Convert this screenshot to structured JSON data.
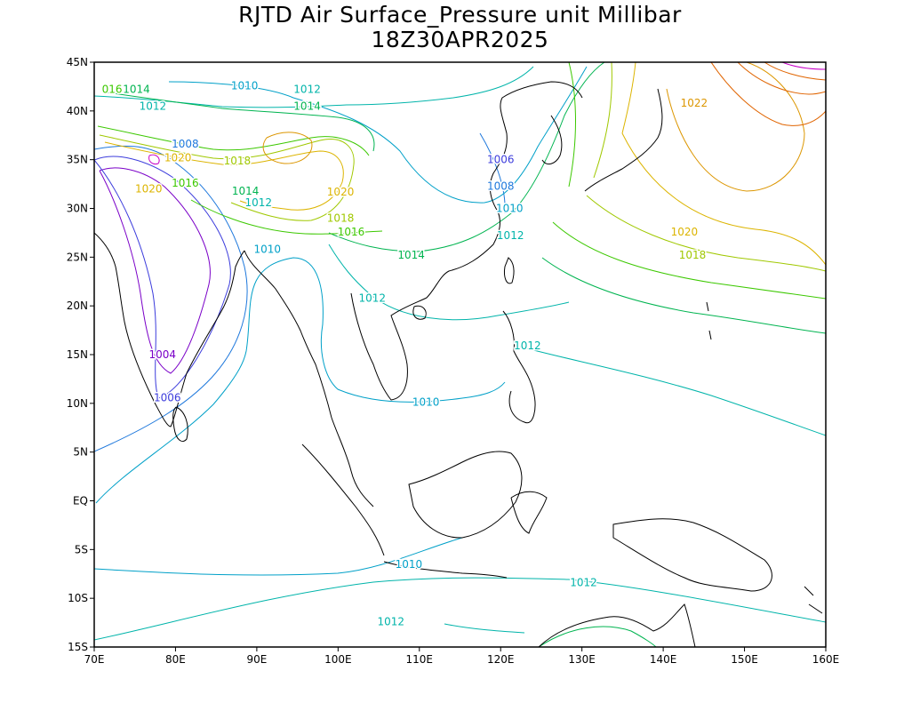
{
  "title": {
    "line1": "RJTD Air Surface_Pressure unit Millibar",
    "line2": "18Z30APR2025"
  },
  "map": {
    "projection": "lat-lon",
    "lon_range": [
      70,
      160
    ],
    "lat_range": [
      -15,
      45
    ],
    "x_ticks": [
      "70E",
      "80E",
      "90E",
      "100E",
      "110E",
      "120E",
      "130E",
      "140E",
      "150E",
      "160E"
    ],
    "y_ticks": [
      "45N",
      "40N",
      "35N",
      "30N",
      "25N",
      "20N",
      "15N",
      "10N",
      "5N",
      "EQ",
      "5S",
      "10S",
      "15S"
    ],
    "field": "surface pressure (mb)",
    "contour_levels": [
      1004,
      1006,
      1008,
      1010,
      1012,
      1014,
      1016,
      1018,
      1020,
      1022
    ],
    "colors": {
      "1004": "#7a00c8",
      "1006": "#3c3cdc",
      "1008": "#1e78dc",
      "1010": "#00a0c8",
      "1012": "#00b4aa",
      "1014": "#00b450",
      "1016": "#3cc800",
      "1018": "#a0c800",
      "1020": "#dcb400",
      "1022": "#dc9600",
      "1024": "#e06400",
      "high": "#c800c8",
      "coast": "#000000"
    },
    "contour_labels": [
      {
        "text": "016",
        "lon": 72.2,
        "lat": 42.2,
        "level": "1016"
      },
      {
        "text": "1014",
        "lon": 75.2,
        "lat": 42.2,
        "level": "1014"
      },
      {
        "text": "1010",
        "lon": 88.5,
        "lat": 42.6,
        "level": "1010"
      },
      {
        "text": "1012",
        "lon": 96.2,
        "lat": 42.2,
        "level": "1012"
      },
      {
        "text": "1012",
        "lon": 77.2,
        "lat": 40.5,
        "level": "1012"
      },
      {
        "text": "1014",
        "lon": 96.2,
        "lat": 40.5,
        "level": "1014"
      },
      {
        "text": "1008",
        "lon": 81.2,
        "lat": 36.6,
        "level": "1008"
      },
      {
        "text": "1020",
        "lon": 80.3,
        "lat": 35.2,
        "level": "1020"
      },
      {
        "text": "1018",
        "lon": 87.6,
        "lat": 34.9,
        "level": "1018"
      },
      {
        "text": "1006",
        "lon": 120.0,
        "lat": 35.0,
        "level": "1006"
      },
      {
        "text": "1016",
        "lon": 81.2,
        "lat": 32.6,
        "level": "1016"
      },
      {
        "text": "1008",
        "lon": 120.0,
        "lat": 32.3,
        "level": "1008"
      },
      {
        "text": "1020",
        "lon": 76.7,
        "lat": 32.0,
        "level": "1020"
      },
      {
        "text": "1014",
        "lon": 88.6,
        "lat": 31.8,
        "level": "1014"
      },
      {
        "text": "1020",
        "lon": 100.3,
        "lat": 31.7,
        "level": "1020"
      },
      {
        "text": "1012",
        "lon": 90.2,
        "lat": 30.6,
        "level": "1012"
      },
      {
        "text": "1010",
        "lon": 121.1,
        "lat": 30.0,
        "level": "1010"
      },
      {
        "text": "1018",
        "lon": 100.3,
        "lat": 29.0,
        "level": "1018"
      },
      {
        "text": "1016",
        "lon": 101.6,
        "lat": 27.6,
        "level": "1016"
      },
      {
        "text": "1012",
        "lon": 121.2,
        "lat": 27.2,
        "level": "1012"
      },
      {
        "text": "1020",
        "lon": 142.6,
        "lat": 27.6,
        "level": "1020"
      },
      {
        "text": "1010",
        "lon": 91.3,
        "lat": 25.8,
        "level": "1010"
      },
      {
        "text": "1014",
        "lon": 109.0,
        "lat": 25.2,
        "level": "1014"
      },
      {
        "text": "1018",
        "lon": 143.6,
        "lat": 25.2,
        "level": "1018"
      },
      {
        "text": "1022",
        "lon": 143.8,
        "lat": 40.8,
        "level": "1022"
      },
      {
        "text": "1012",
        "lon": 104.2,
        "lat": 20.8,
        "level": "1012"
      },
      {
        "text": "1012",
        "lon": 123.3,
        "lat": 15.9,
        "level": "1012"
      },
      {
        "text": "1004",
        "lon": 78.4,
        "lat": 15.0,
        "level": "1004"
      },
      {
        "text": "1006",
        "lon": 79.0,
        "lat": 10.6,
        "level": "1006"
      },
      {
        "text": "1010",
        "lon": 110.8,
        "lat": 10.1,
        "level": "1010"
      },
      {
        "text": "1010",
        "lon": 108.7,
        "lat": -6.5,
        "level": "1010"
      },
      {
        "text": "1012",
        "lon": 130.2,
        "lat": -8.4,
        "level": "1012"
      },
      {
        "text": "1012",
        "lon": 106.5,
        "lat": -12.4,
        "level": "1012"
      }
    ]
  }
}
